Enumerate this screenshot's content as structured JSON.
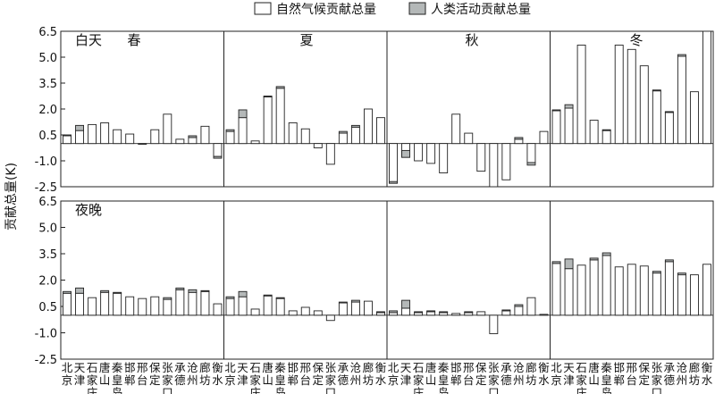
{
  "chart_data": {
    "type": "bar",
    "stacked": true,
    "ylabel": "贡献总量(K)",
    "ylim": [
      -2.5,
      6.5
    ],
    "yticks": [
      "6.5",
      "5.0",
      "3.5",
      "2.0",
      "0.5",
      "-1.0",
      "-2.5"
    ],
    "ytick_values": [
      6.5,
      5.0,
      3.5,
      2.0,
      0.5,
      -1.0,
      -2.5
    ],
    "legend": [
      {
        "name": "自然气候贡献总量",
        "color": "#ffffff"
      },
      {
        "name": "人类活动贡献总量",
        "color": "#b4b8b8"
      }
    ],
    "legend_position": "top-center",
    "seasons": [
      "春",
      "夏",
      "秋",
      "冬"
    ],
    "city_labels": [
      [
        "北",
        "京"
      ],
      [
        "天",
        "津"
      ],
      [
        "石",
        "家",
        "庄"
      ],
      [
        "唐",
        "山"
      ],
      [
        "秦",
        "皇",
        "岛"
      ],
      [
        "邯",
        "郸"
      ],
      [
        "邢",
        "台"
      ],
      [
        "保",
        "定"
      ],
      [
        "张",
        "家",
        "口"
      ],
      [
        "承",
        "德"
      ],
      [
        "沧",
        "州"
      ],
      [
        "廊",
        "坊"
      ],
      [
        "衡",
        "水"
      ]
    ],
    "panels": [
      {
        "label": "白天",
        "natural": [
          [
            0.45,
            0.75,
            1.1,
            1.2,
            0.8,
            0.55,
            0.0,
            0.8,
            1.7,
            0.25,
            0.35,
            1.0,
            -0.75
          ],
          [
            0.7,
            1.5,
            0.15,
            2.7,
            3.2,
            1.2,
            0.85,
            -0.25,
            -1.2,
            0.6,
            0.95,
            2.0,
            1.5
          ],
          [
            -2.3,
            -0.8,
            -1.0,
            -1.15,
            -1.7,
            1.7,
            0.6,
            -1.6,
            -2.5,
            -2.1,
            0.25,
            -1.1,
            0.7
          ],
          [
            1.9,
            2.05,
            5.7,
            1.35,
            0.75,
            5.7,
            5.45,
            4.5,
            3.05,
            1.8,
            5.05,
            3.0,
            6.5
          ]
        ],
        "human": [
          [
            0.05,
            0.3,
            0.0,
            0.0,
            0.0,
            0.0,
            0.0,
            0.0,
            0.0,
            0.0,
            0.1,
            0.0,
            -0.1
          ],
          [
            0.1,
            0.45,
            0.0,
            0.05,
            0.1,
            0.0,
            0.0,
            0.0,
            0.0,
            0.1,
            0.1,
            0.0,
            0.0
          ],
          [
            0.1,
            0.4,
            0.0,
            0.0,
            0.0,
            0.0,
            0.0,
            0.0,
            0.0,
            0.0,
            0.1,
            -0.15,
            0.0
          ],
          [
            0.05,
            0.2,
            0.0,
            0.0,
            0.05,
            0.0,
            0.0,
            0.0,
            0.05,
            0.05,
            0.1,
            0.0,
            0.0
          ]
        ]
      },
      {
        "label": "夜晚",
        "natural": [
          [
            1.25,
            1.25,
            1.0,
            1.3,
            1.25,
            1.05,
            0.95,
            1.05,
            0.9,
            1.45,
            1.3,
            1.35,
            0.65
          ],
          [
            0.95,
            1.05,
            0.35,
            1.1,
            0.95,
            0.25,
            0.45,
            0.25,
            -0.3,
            0.7,
            0.75,
            0.8,
            0.15
          ],
          [
            0.15,
            0.4,
            0.15,
            0.2,
            0.15,
            0.1,
            0.15,
            0.2,
            -1.05,
            0.25,
            0.5,
            1.0,
            0.05
          ],
          [
            2.95,
            2.65,
            2.85,
            3.15,
            3.4,
            2.75,
            2.9,
            2.8,
            2.4,
            3.05,
            2.3,
            2.3,
            2.9
          ]
        ],
        "human": [
          [
            0.1,
            0.3,
            0.0,
            0.1,
            0.05,
            0.0,
            0.0,
            0.0,
            0.1,
            0.1,
            0.15,
            0.05,
            0.0
          ],
          [
            0.1,
            0.3,
            0.0,
            0.05,
            0.05,
            0.0,
            0.0,
            0.0,
            0.0,
            0.05,
            0.1,
            0.0,
            0.05
          ],
          [
            0.1,
            0.45,
            0.05,
            0.05,
            0.05,
            0.0,
            0.05,
            0.0,
            0.0,
            0.05,
            0.1,
            0.0,
            0.0
          ],
          [
            0.1,
            0.55,
            0.0,
            0.1,
            0.15,
            0.0,
            0.0,
            0.0,
            0.1,
            0.1,
            0.1,
            0.0,
            0.0
          ]
        ]
      }
    ]
  }
}
